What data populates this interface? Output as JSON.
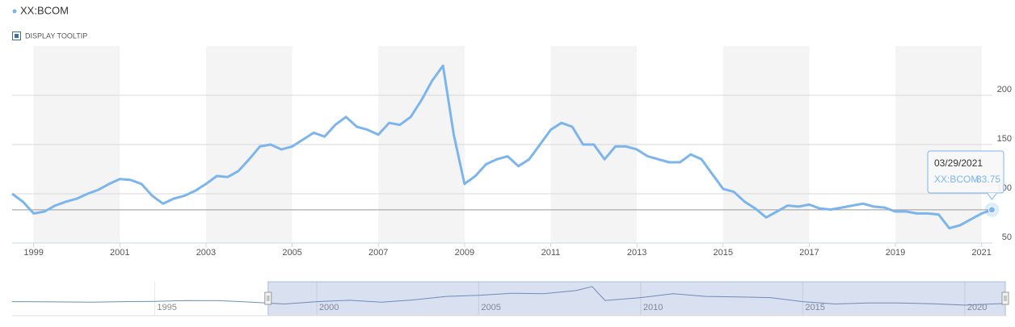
{
  "display_tooltip": "DISPLAY TOOLTIP",
  "chart_data": [
    {
      "type": "line",
      "xlim": [
        1998.5,
        2021.25
      ],
      "xticks": [
        1999,
        2001,
        2003,
        2005,
        2007,
        2009,
        2011,
        2013,
        2015,
        2017,
        2019,
        2021
      ],
      "ylim": [
        50,
        250
      ],
      "yticks": [
        50,
        100,
        150,
        200
      ],
      "grid": true,
      "tooltip_date": "03/29/2021",
      "series": [
        {
          "name": "XX:BCOM",
          "color": "#7cb5ec",
          "x": [
            1998.5,
            1998.75,
            1999,
            1999.25,
            1999.5,
            1999.75,
            2000,
            2000.25,
            2000.5,
            2000.75,
            2001,
            2001.25,
            2001.5,
            2001.75,
            2002,
            2002.25,
            2002.5,
            2002.75,
            2003,
            2003.25,
            2003.5,
            2003.75,
            2004,
            2004.25,
            2004.5,
            2004.75,
            2005,
            2005.25,
            2005.5,
            2005.75,
            2006,
            2006.25,
            2006.5,
            2006.75,
            2007,
            2007.25,
            2007.5,
            2007.75,
            2008,
            2008.25,
            2008.5,
            2008.75,
            2009,
            2009.25,
            2009.5,
            2009.75,
            2010,
            2010.25,
            2010.5,
            2010.75,
            2011,
            2011.25,
            2011.5,
            2011.75,
            2012,
            2012.25,
            2012.5,
            2012.75,
            2013,
            2013.25,
            2013.5,
            2013.75,
            2014,
            2014.25,
            2014.5,
            2014.75,
            2015,
            2015.25,
            2015.5,
            2015.75,
            2016,
            2016.25,
            2016.5,
            2016.75,
            2017,
            2017.25,
            2017.5,
            2017.75,
            2018,
            2018.25,
            2018.5,
            2018.75,
            2019,
            2019.25,
            2019.5,
            2019.75,
            2020,
            2020.25,
            2020.5,
            2020.75,
            2021,
            2021.24
          ],
          "values": [
            100,
            92,
            80,
            82,
            88,
            92,
            95,
            100,
            104,
            110,
            115,
            114,
            110,
            98,
            90,
            95,
            98,
            103,
            110,
            118,
            117,
            123,
            135,
            148,
            150,
            145,
            148,
            155,
            162,
            158,
            170,
            178,
            168,
            165,
            160,
            172,
            170,
            178,
            195,
            215,
            230,
            160,
            110,
            118,
            130,
            135,
            138,
            128,
            135,
            150,
            165,
            172,
            168,
            150,
            150,
            135,
            148,
            148,
            145,
            138,
            135,
            132,
            132,
            140,
            135,
            120,
            105,
            102,
            92,
            85,
            76,
            82,
            88,
            87,
            89,
            85,
            84,
            86,
            88,
            90,
            87,
            86,
            82,
            82,
            80,
            80,
            79,
            65,
            68,
            74,
            80,
            83.75
          ]
        }
      ]
    },
    {
      "type": "navigator",
      "xlim": [
        1990.6,
        2021.3
      ],
      "xticks": [
        1995,
        2000,
        2005,
        2010,
        2015,
        2020
      ],
      "ylim": [
        0,
        250
      ],
      "series": [
        {
          "name": "XX:BCOM",
          "color": "#6f8fb5",
          "x": [
            1990.6,
            1991,
            1992,
            1993,
            1994,
            1995,
            1996,
            1997,
            1998,
            1999,
            2000,
            2001,
            2002,
            2003,
            2004,
            2005,
            2006,
            2007,
            2008,
            2008.5,
            2008.9,
            2010,
            2011,
            2012,
            2013,
            2014,
            2015,
            2016,
            2017,
            2018,
            2019,
            2020,
            2021.24
          ],
          "values": [
            100,
            100,
            98,
            96,
            100,
            103,
            110,
            108,
            95,
            80,
            100,
            112,
            95,
            115,
            145,
            155,
            172,
            168,
            195,
            230,
            110,
            135,
            168,
            145,
            140,
            135,
            100,
            80,
            88,
            88,
            82,
            70,
            83.75
          ]
        }
      ]
    }
  ]
}
